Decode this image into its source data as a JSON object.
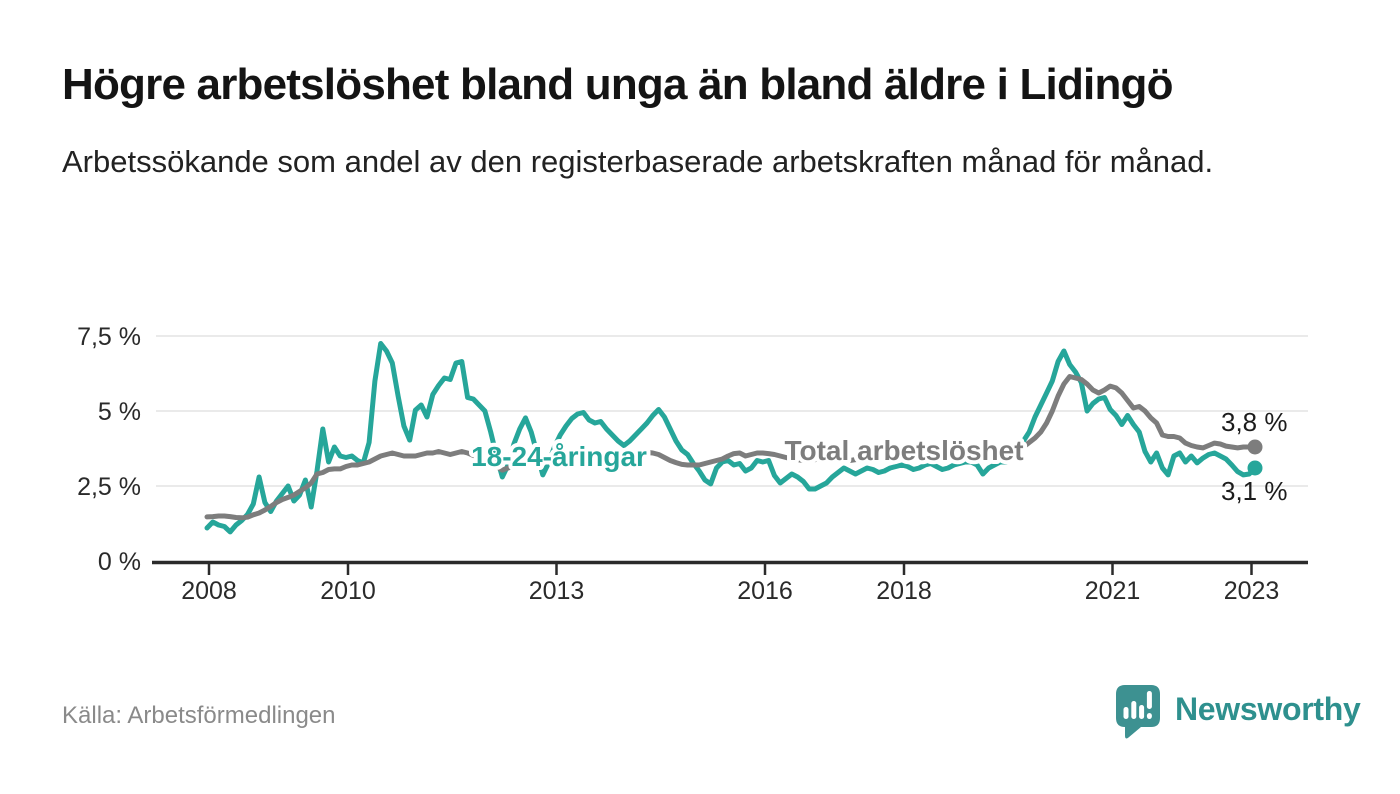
{
  "header": {
    "title": "Högre arbetslöshet bland unga än bland äldre i Lidingö",
    "subtitle": "Arbetssökande som andel av den registerbaserade arbetskraften månad för månad."
  },
  "footer": {
    "source": "Källa: Arbetsförmedlingen"
  },
  "brand": {
    "name": "Newsworthy",
    "icon": "speech-bubble-bar-chart-icon",
    "icon_color": "#3d9191",
    "text_color": "#2e908e"
  },
  "chart_data": {
    "type": "line",
    "title": "Högre arbetslöshet bland unga än bland äldre i Lidingö",
    "xlabel": "",
    "ylabel": "",
    "x_unit": "month",
    "x_start": "2008-01",
    "x_end": "2023-02",
    "x_ticks": [
      2008,
      2010,
      2013,
      2016,
      2018,
      2021,
      2023
    ],
    "y_ticks": [
      0,
      2.5,
      5,
      7.5
    ],
    "y_tick_labels": [
      "0 %",
      "2,5 %",
      "5 %",
      "7,5 %"
    ],
    "ylim": [
      0,
      7.8
    ],
    "grid": "horizontal",
    "grid_color": "#e3e3e3",
    "axis_color": "#2b2b2b",
    "legend_position": "inline-labels",
    "series": [
      {
        "name": "18-24-åringar",
        "color": "#26a69a",
        "inline_label": "18-24-åringar",
        "end_label": "3,1 %",
        "end_label_position": "below",
        "last_value": 3.1,
        "values": [
          1.1,
          1.3,
          1.2,
          1.15,
          0.97,
          1.2,
          1.35,
          1.55,
          1.9,
          2.8,
          1.95,
          1.65,
          2.0,
          2.25,
          2.5,
          2.0,
          2.2,
          2.7,
          1.8,
          3.0,
          4.4,
          3.3,
          3.8,
          3.5,
          3.45,
          3.5,
          3.35,
          3.27,
          3.95,
          6.0,
          7.25,
          7.0,
          6.6,
          5.5,
          4.5,
          4.03,
          5.03,
          5.2,
          4.8,
          5.55,
          5.85,
          6.1,
          6.05,
          6.6,
          6.65,
          5.45,
          5.4,
          5.2,
          5.0,
          4.3,
          3.5,
          2.8,
          3.2,
          3.9,
          4.4,
          4.77,
          4.3,
          3.6,
          2.87,
          3.27,
          3.8,
          4.2,
          4.5,
          4.75,
          4.9,
          4.95,
          4.7,
          4.6,
          4.65,
          4.4,
          4.2,
          4.0,
          3.85,
          4.0,
          4.2,
          4.4,
          4.6,
          4.85,
          5.05,
          4.8,
          4.4,
          4.0,
          3.7,
          3.55,
          3.25,
          3.0,
          2.7,
          2.57,
          3.1,
          3.3,
          3.35,
          3.2,
          3.25,
          3.0,
          3.1,
          3.35,
          3.3,
          3.35,
          2.85,
          2.6,
          2.75,
          2.9,
          2.8,
          2.65,
          2.4,
          2.4,
          2.5,
          2.6,
          2.8,
          2.95,
          3.1,
          3.0,
          2.9,
          3.0,
          3.1,
          3.05,
          2.95,
          3.0,
          3.1,
          3.15,
          3.2,
          3.15,
          3.05,
          3.1,
          3.2,
          3.25,
          3.15,
          3.05,
          3.1,
          3.2,
          3.25,
          3.3,
          3.3,
          3.2,
          2.9,
          3.1,
          3.2,
          3.3,
          3.3,
          3.4,
          3.6,
          4.0,
          4.3,
          4.8,
          5.2,
          5.6,
          6.0,
          6.65,
          7.0,
          6.55,
          6.3,
          5.95,
          5.0,
          5.25,
          5.4,
          5.45,
          5.05,
          4.85,
          4.55,
          4.85,
          4.55,
          4.3,
          3.65,
          3.3,
          3.6,
          3.1,
          2.87,
          3.5,
          3.6,
          3.3,
          3.5,
          3.27,
          3.43,
          3.55,
          3.6,
          3.5,
          3.4,
          3.2,
          2.98,
          2.87,
          2.9,
          3.1
        ]
      },
      {
        "name": "Total arbetslöshet",
        "color": "#7d7d7d",
        "inline_label": "Total arbetslöshet",
        "end_label": "3,8 %",
        "end_label_position": "above",
        "last_value": 3.8,
        "values": [
          1.47,
          1.48,
          1.5,
          1.5,
          1.48,
          1.45,
          1.44,
          1.46,
          1.54,
          1.6,
          1.7,
          1.82,
          1.95,
          2.05,
          2.12,
          2.2,
          2.32,
          2.44,
          2.6,
          2.9,
          2.95,
          3.05,
          3.07,
          3.07,
          3.15,
          3.2,
          3.2,
          3.25,
          3.3,
          3.4,
          3.5,
          3.55,
          3.6,
          3.55,
          3.5,
          3.5,
          3.5,
          3.55,
          3.6,
          3.6,
          3.65,
          3.6,
          3.55,
          3.6,
          3.65,
          3.6,
          3.52,
          3.45,
          3.38,
          3.3,
          3.15,
          3.03,
          3.1,
          3.2,
          3.25,
          3.3,
          3.35,
          3.4,
          3.45,
          3.5,
          3.5,
          3.55,
          3.6,
          3.6,
          3.62,
          3.63,
          3.62,
          3.6,
          3.6,
          3.6,
          3.6,
          3.6,
          3.6,
          3.62,
          3.63,
          3.64,
          3.62,
          3.6,
          3.55,
          3.45,
          3.35,
          3.28,
          3.22,
          3.2,
          3.2,
          3.2,
          3.25,
          3.3,
          3.35,
          3.4,
          3.5,
          3.58,
          3.6,
          3.5,
          3.55,
          3.6,
          3.6,
          3.58,
          3.55,
          3.5,
          3.45,
          3.4,
          3.38,
          3.35,
          3.35,
          3.38,
          3.4,
          3.4,
          3.38,
          3.35,
          3.33,
          3.35,
          3.38,
          3.4,
          3.42,
          3.4,
          3.38,
          3.4,
          3.42,
          3.45,
          3.45,
          3.43,
          3.4,
          3.42,
          3.45,
          3.43,
          3.4,
          3.42,
          3.45,
          3.47,
          3.45,
          3.43,
          3.4,
          3.42,
          3.45,
          3.43,
          3.45,
          3.5,
          3.55,
          3.6,
          3.7,
          3.8,
          3.95,
          4.1,
          4.3,
          4.6,
          5.0,
          5.5,
          5.9,
          6.15,
          6.1,
          6.05,
          5.9,
          5.7,
          5.6,
          5.7,
          5.83,
          5.77,
          5.6,
          5.35,
          5.1,
          5.15,
          5.0,
          4.77,
          4.6,
          4.2,
          4.15,
          4.15,
          4.1,
          3.93,
          3.85,
          3.8,
          3.77,
          3.85,
          3.93,
          3.9,
          3.83,
          3.8,
          3.77,
          3.8,
          3.8,
          3.8
        ]
      }
    ]
  }
}
